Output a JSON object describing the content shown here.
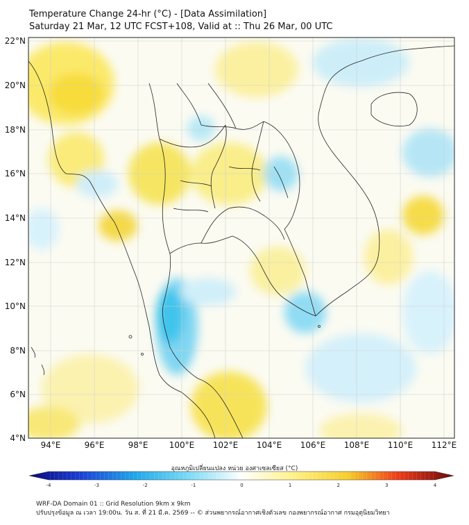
{
  "title": {
    "line1": "Temperature Change 24-hr (°C) - [Data Assimilation]",
    "line2": "Saturday 21 Mar, 12 UTC FCST+108, Valid at :: Thu 26 Mar, 00 UTC"
  },
  "axes": {
    "lat_labels": [
      "22°N",
      "20°N",
      "18°N",
      "16°N",
      "14°N",
      "12°N",
      "10°N",
      "8°N",
      "6°N",
      "4°N"
    ],
    "lon_labels": [
      "94°E",
      "96°E",
      "98°E",
      "100°E",
      "102°E",
      "104°E",
      "106°E",
      "108°E",
      "110°E",
      "112°E"
    ]
  },
  "colorbar": {
    "title": "อุณหภูมิเปลี่ยนแปลง หน่วย องศาเซลเซียส (°C)",
    "ticks": [
      "-4",
      "-3",
      "-2",
      "-1",
      "0",
      "1",
      "2",
      "3",
      "4"
    ],
    "min": -4,
    "max": 4
  },
  "footer": {
    "line1": "WRF-DA Domain 01 :: Grid Resolution 9km x 9km",
    "line2": "ปรับปรุงข้อมูล ณ เวลา 19:00น. วัน ส. ที่ 21 มี.ค. 2569 -- © ส่วนพยากรณ์อากาศเชิงตัวเลข กองพยากรณ์อากาศ กรมอุตุนิยมวิทยา"
  },
  "colors": {
    "warm_light": "#fff7b0",
    "warm_mid": "#f7e04a",
    "cool_light": "#d8f2fb",
    "cool_mid": "#6fd3f2",
    "cool_strong": "#2ec1ec"
  }
}
